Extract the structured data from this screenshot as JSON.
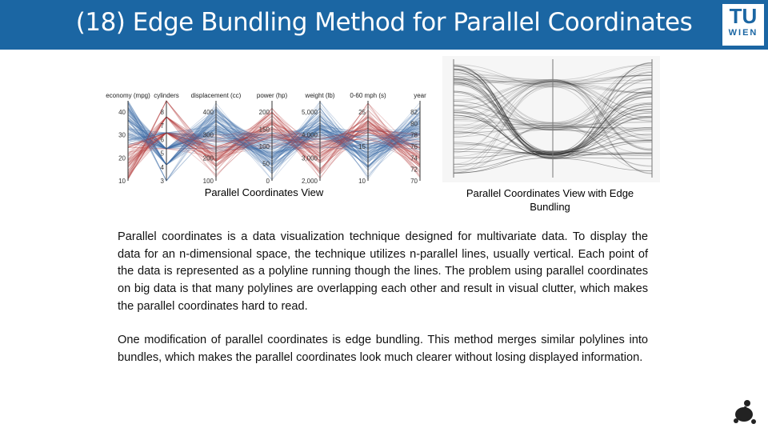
{
  "header": {
    "title": "(18) Edge Bundling Method for Parallel Coordinates",
    "logo": [
      "TU",
      "WIEN"
    ]
  },
  "figures": [
    {
      "caption": "Parallel Coordinates View",
      "axes": [
        {
          "name": "economy (mpg)",
          "ticks": [
            "40",
            "30",
            "20",
            "10"
          ]
        },
        {
          "name": "cylinders",
          "ticks": [
            "8",
            "7",
            "6",
            "5",
            "4",
            "3"
          ]
        },
        {
          "name": "displacement (cc)",
          "ticks": [
            "400",
            "300",
            "200",
            "100"
          ]
        },
        {
          "name": "power (hp)",
          "ticks": [
            "200",
            "150",
            "100",
            "50",
            "0"
          ]
        },
        {
          "name": "weight (lb)",
          "ticks": [
            "5,000",
            "4,000",
            "3,000",
            "2,000"
          ]
        },
        {
          "name": "0-60 mph (s)",
          "ticks": [
            "25",
            "15",
            "10"
          ]
        },
        {
          "name": "year",
          "ticks": [
            "82",
            "80",
            "78",
            "76",
            "74",
            "72",
            "70"
          ]
        }
      ]
    },
    {
      "caption": "Parallel Coordinates View with Edge Bundling"
    }
  ],
  "body": {
    "paragraphs": [
      "Parallel coordinates is a data visualization technique designed for multivariate data. To display the data for an n-dimensional space, the technique utilizes n-parallel lines, usually vertical. Each point of the data is represented as a polyline running though the lines. The problem using parallel coordinates on big data is that many polylines are overlapping each other and result in visual clutter, which makes the parallel coordinates hard to read.",
      "One modification of parallel coordinates is edge bundling. This method merges similar polylines into bundles, which makes the parallel coordinates look much clearer without losing displayed information."
    ]
  }
}
